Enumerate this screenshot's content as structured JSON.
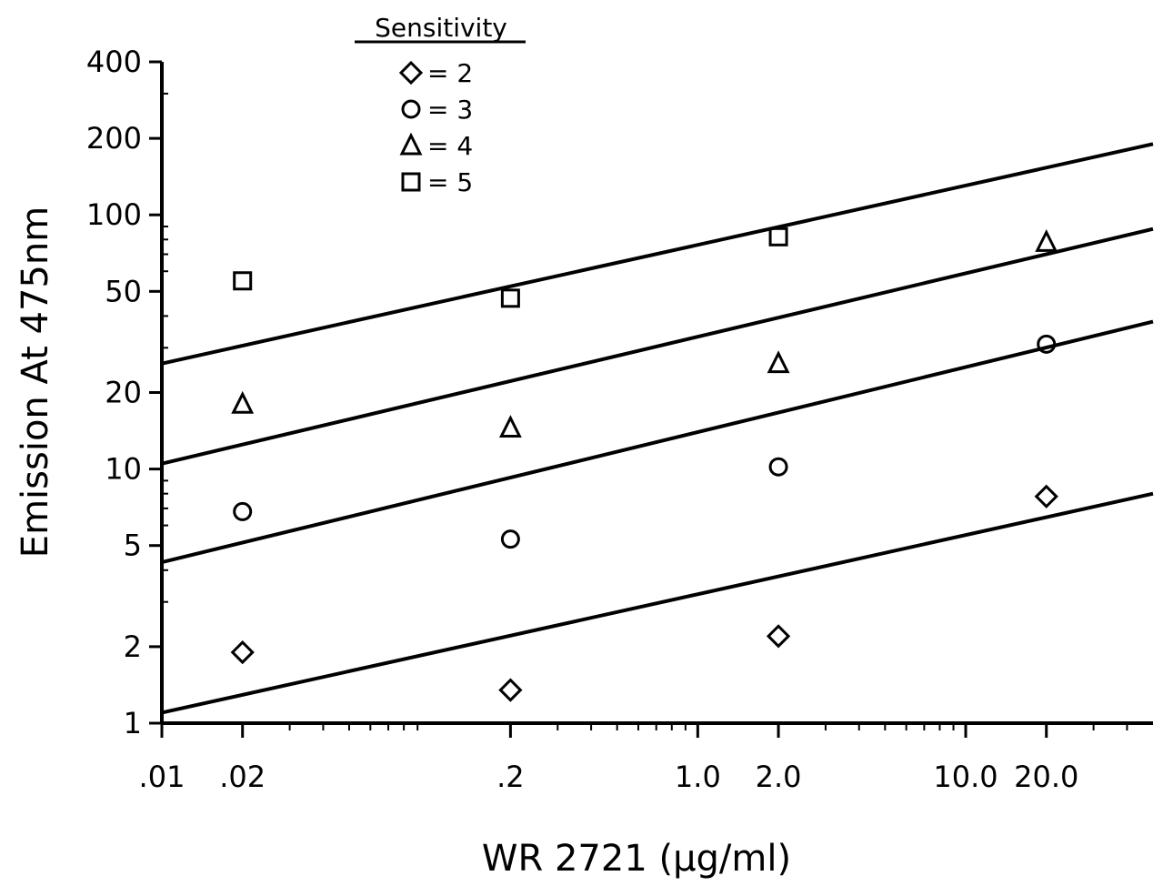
{
  "chart_data": {
    "type": "scatter",
    "title": "",
    "xlabel": "WR 2721 (µg/ml)",
    "ylabel": "Emission At 475nm",
    "xscale": "log",
    "yscale": "log",
    "xlim": [
      0.01,
      50
    ],
    "ylim": [
      1,
      400
    ],
    "x_ticks": [
      ".01",
      ".02",
      ".2",
      "1.0",
      "2.0",
      "10.0",
      "20.0"
    ],
    "y_ticks": [
      "1",
      "2",
      "5",
      "10",
      "20",
      "50",
      "100",
      "200",
      "400"
    ],
    "grid": false,
    "legend": {
      "title": "Sensitivity",
      "position": "top-left",
      "entries": [
        {
          "marker": "diamond",
          "label": "= 2"
        },
        {
          "marker": "circle",
          "label": "= 3"
        },
        {
          "marker": "triangle",
          "label": "= 4"
        },
        {
          "marker": "square",
          "label": "= 5"
        }
      ]
    },
    "series": [
      {
        "marker": "diamond",
        "x": [
          0.02,
          0.2,
          2.0,
          20.0
        ],
        "y": [
          1.9,
          1.35,
          2.2,
          7.8
        ],
        "fit": {
          "x": [
            0.01,
            50
          ],
          "y": [
            1.1,
            8.0
          ]
        }
      },
      {
        "marker": "circle",
        "x": [
          0.02,
          0.2,
          2.0,
          20.0
        ],
        "y": [
          6.8,
          5.3,
          10.2,
          31
        ],
        "fit": {
          "x": [
            0.01,
            50
          ],
          "y": [
            4.3,
            38
          ]
        }
      },
      {
        "marker": "triangle",
        "x": [
          0.02,
          0.2,
          2.0,
          20.0
        ],
        "y": [
          18,
          14.5,
          26,
          78
        ],
        "fit": {
          "x": [
            0.01,
            50
          ],
          "y": [
            10.5,
            88
          ]
        }
      },
      {
        "marker": "square",
        "x": [
          0.02,
          0.2,
          2.0
        ],
        "y": [
          55,
          47,
          82
        ],
        "fit": {
          "x": [
            0.01,
            50
          ],
          "y": [
            26,
            190
          ]
        }
      }
    ]
  }
}
